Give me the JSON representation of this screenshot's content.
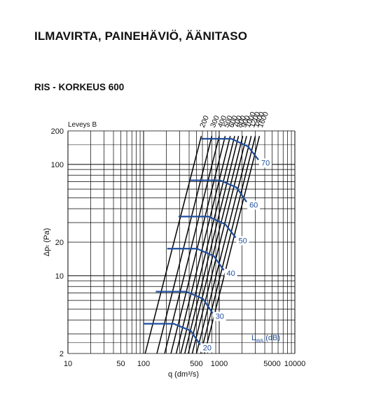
{
  "page_title": "ILMAVIRTA, PAINEHÄVIÖ, ÄÄNITASO",
  "section_title": "RIS - KORKEUS 600",
  "colors": {
    "grid": "#000000",
    "width_lines": "#000000",
    "sound_lines": "#1f4e9c",
    "text": "#111111"
  },
  "chart_data": {
    "type": "line",
    "xlabel": "q (dm³/s)",
    "ylabel": "Δpₜ (Pa)",
    "x_scale": "log",
    "y_scale": "log",
    "xlim": [
      10,
      10000
    ],
    "ylim": [
      2,
      200
    ],
    "x_ticks": [
      10,
      50,
      100,
      500,
      1000,
      5000,
      10000
    ],
    "x_tick_labels": [
      "10",
      "50",
      "100",
      "500",
      "1000",
      "5000",
      "10000"
    ],
    "y_ticks": [
      2,
      10,
      20,
      100,
      200
    ],
    "y_tick_labels": [
      "2",
      "10",
      "20",
      "100",
      "200"
    ],
    "grid": true,
    "width_legend_title": "Leveys B",
    "width_series": [
      {
        "name": "200",
        "points": [
          [
            105,
            2
          ],
          [
            580,
            180
          ]
        ]
      },
      {
        "name": "300",
        "points": [
          [
            150,
            2
          ],
          [
            800,
            180
          ]
        ]
      },
      {
        "name": "400",
        "points": [
          [
            190,
            2
          ],
          [
            1000,
            180
          ]
        ]
      },
      {
        "name": "500",
        "points": [
          [
            230,
            2
          ],
          [
            1200,
            180
          ]
        ]
      },
      {
        "name": "600",
        "points": [
          [
            270,
            2
          ],
          [
            1400,
            180
          ]
        ]
      },
      {
        "name": "700",
        "points": [
          [
            310,
            2
          ],
          [
            1600,
            180
          ]
        ]
      },
      {
        "name": "800",
        "points": [
          [
            350,
            2
          ],
          [
            1800,
            180
          ]
        ]
      },
      {
        "name": "900",
        "points": [
          [
            390,
            2
          ],
          [
            2050,
            180
          ]
        ]
      },
      {
        "name": "1000",
        "points": [
          [
            440,
            2
          ],
          [
            2300,
            180
          ]
        ]
      },
      {
        "name": "1200",
        "points": [
          [
            500,
            2
          ],
          [
            2650,
            180
          ]
        ]
      },
      {
        "name": "1400",
        "points": [
          [
            570,
            2
          ],
          [
            3000,
            180
          ]
        ]
      },
      {
        "name": "1600",
        "points": [
          [
            640,
            2
          ],
          [
            3400,
            180
          ]
        ]
      }
    ],
    "sound_legend_title": "L_WA (dB)",
    "sound_series": [
      {
        "name": "20",
        "points": [
          [
            100,
            3.7
          ],
          [
            250,
            3.7
          ],
          [
            420,
            3.2
          ],
          [
            560,
            2.4
          ]
        ]
      },
      {
        "name": "30",
        "points": [
          [
            145,
            7.2
          ],
          [
            365,
            7.2
          ],
          [
            610,
            6.2
          ],
          [
            820,
            4.6
          ]
        ]
      },
      {
        "name": "40",
        "points": [
          [
            205,
            17.5
          ],
          [
            510,
            17.5
          ],
          [
            850,
            15.0
          ],
          [
            1150,
            11.2
          ]
        ]
      },
      {
        "name": "50",
        "points": [
          [
            290,
            34
          ],
          [
            720,
            34
          ],
          [
            1200,
            29
          ],
          [
            1650,
            22
          ]
        ]
      },
      {
        "name": "60",
        "points": [
          [
            410,
            72
          ],
          [
            1020,
            72
          ],
          [
            1700,
            62
          ],
          [
            2300,
            46
          ]
        ]
      },
      {
        "name": "70",
        "points": [
          [
            580,
            170
          ],
          [
            1450,
            170
          ],
          [
            2400,
            145
          ],
          [
            3300,
            110
          ]
        ]
      }
    ]
  }
}
